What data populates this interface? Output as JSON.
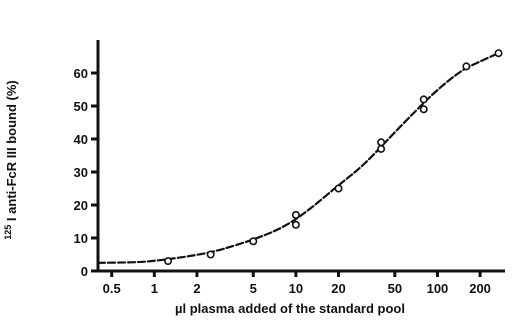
{
  "chart_data": {
    "type": "line",
    "title": "",
    "xlabel": "µl plasma added of the standard pool",
    "ylabel_sup": "125",
    "ylabel_main": "I anti-FcR III bound (%)",
    "x_scale": "log",
    "xlim": [
      0.4,
      300
    ],
    "ylim": [
      0,
      70
    ],
    "x_ticks": [
      0.5,
      1,
      2,
      5,
      10,
      20,
      50,
      100,
      200
    ],
    "x_tick_labels": [
      "0.5",
      "1",
      "2",
      "5",
      "10",
      "20",
      "50",
      "100",
      "200"
    ],
    "y_ticks": [
      0,
      10,
      20,
      30,
      40,
      50,
      60
    ],
    "y_tick_labels": [
      "0",
      "10",
      "20",
      "30",
      "40",
      "50",
      "60"
    ],
    "series": [
      {
        "points": [
          {
            "x": 1.25,
            "y": 3
          },
          {
            "x": 2.5,
            "y": 5
          },
          {
            "x": 5,
            "y": 9
          },
          {
            "x": 10,
            "y": 14
          },
          {
            "x": 10,
            "y": 17
          },
          {
            "x": 20,
            "y": 25
          },
          {
            "x": 40,
            "y": 37
          },
          {
            "x": 40,
            "y": 39
          },
          {
            "x": 80,
            "y": 49
          },
          {
            "x": 80,
            "y": 52
          },
          {
            "x": 160,
            "y": 62
          },
          {
            "x": 270,
            "y": 66
          }
        ],
        "curve": [
          {
            "x": 0.4,
            "y": 2.5
          },
          {
            "x": 0.7,
            "y": 2.6
          },
          {
            "x": 1,
            "y": 3
          },
          {
            "x": 2,
            "y": 4.8
          },
          {
            "x": 3,
            "y": 6.5
          },
          {
            "x": 5,
            "y": 9.5
          },
          {
            "x": 8,
            "y": 13
          },
          {
            "x": 12,
            "y": 18
          },
          {
            "x": 20,
            "y": 26
          },
          {
            "x": 30,
            "y": 32
          },
          {
            "x": 45,
            "y": 40
          },
          {
            "x": 70,
            "y": 48.5
          },
          {
            "x": 100,
            "y": 55
          },
          {
            "x": 150,
            "y": 61
          },
          {
            "x": 200,
            "y": 63.5
          },
          {
            "x": 270,
            "y": 66
          }
        ]
      }
    ],
    "grid": false,
    "legend": "none"
  }
}
